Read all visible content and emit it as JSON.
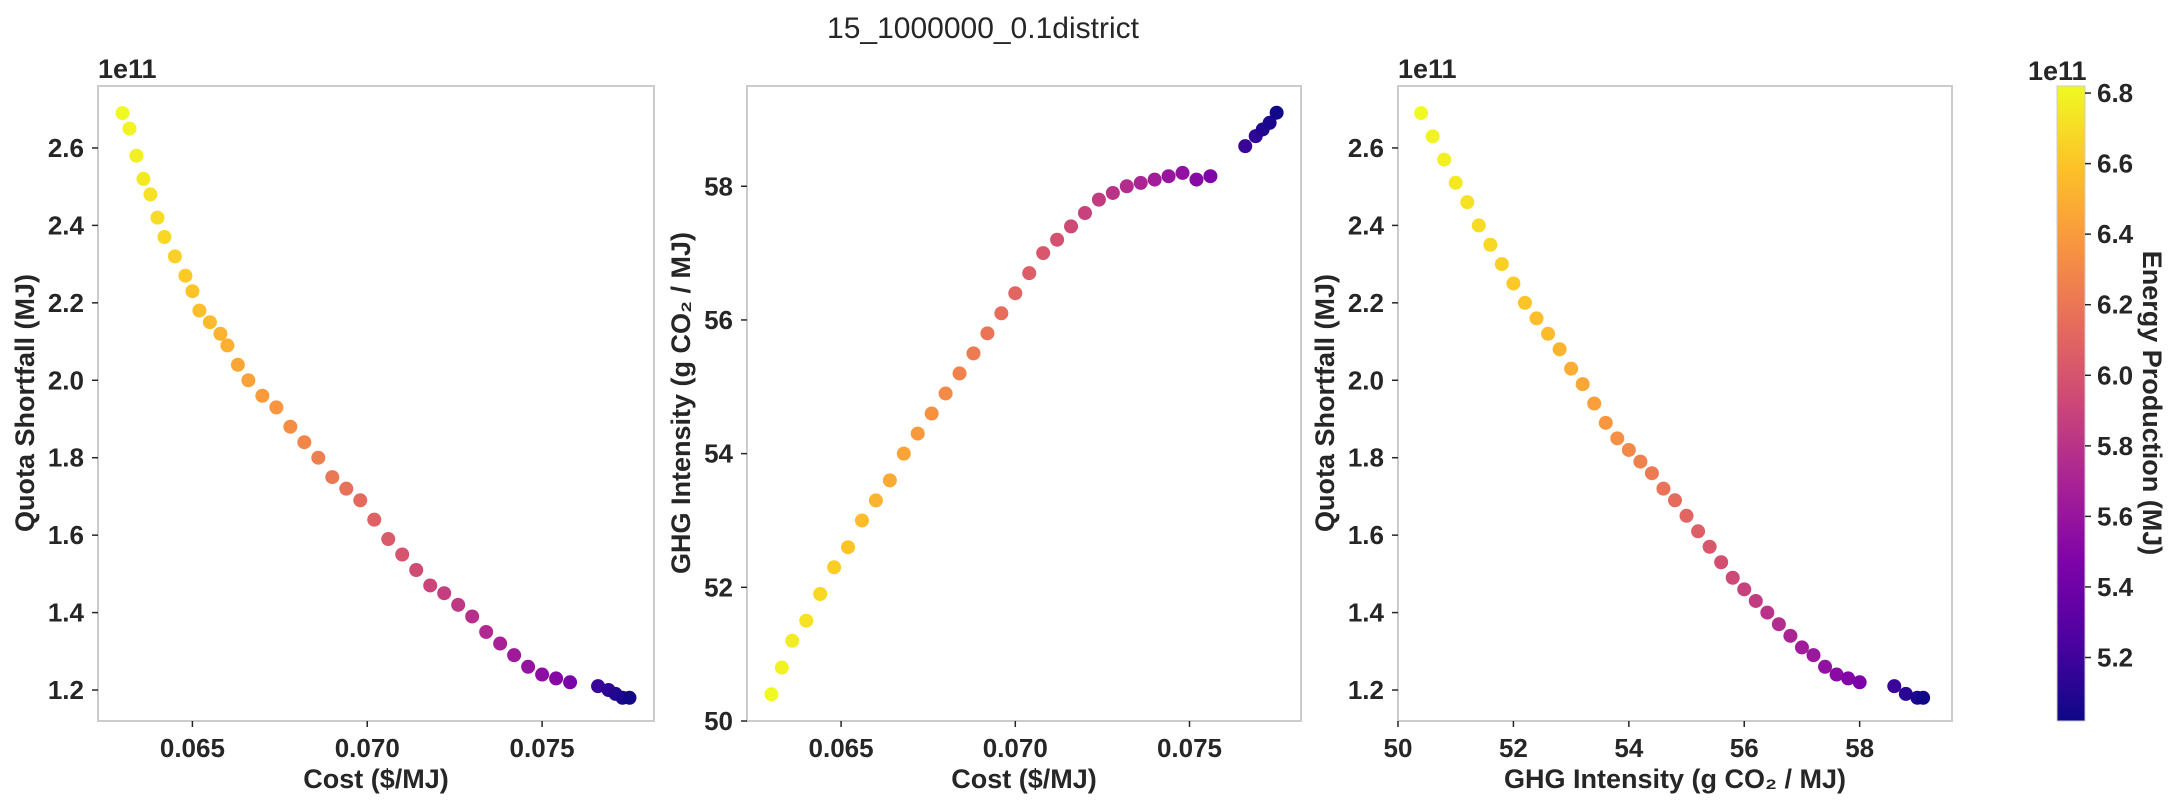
{
  "figure": {
    "title": "15_1000000_0.1district"
  },
  "colorbar": {
    "label": "Energy Production (MJ)",
    "offset": "1e11",
    "range": [
      5.02,
      6.82
    ],
    "ticks": [
      "5.2",
      "5.4",
      "5.6",
      "5.8",
      "6.0",
      "6.2",
      "6.4",
      "6.6",
      "6.8"
    ],
    "tick_values": [
      5.2,
      5.4,
      5.6,
      5.8,
      6.0,
      6.2,
      6.4,
      6.6,
      6.8
    ],
    "colormap": "plasma"
  },
  "chart_data": [
    {
      "type": "scatter",
      "xlabel": "Cost ($/MJ)",
      "ylabel": "Quota Shortfall (MJ)",
      "y_offset": "1e11",
      "xlim": [
        0.0623,
        0.0782
      ],
      "ylim": [
        1.12,
        2.76
      ],
      "xticks": [
        "0.065",
        "0.070",
        "0.075"
      ],
      "xtick_values": [
        0.065,
        0.07,
        0.075
      ],
      "yticks": [
        "1.2",
        "1.4",
        "1.6",
        "1.8",
        "2.0",
        "2.2",
        "2.4",
        "2.6"
      ],
      "ytick_values": [
        1.2,
        1.4,
        1.6,
        1.8,
        2.0,
        2.2,
        2.4,
        2.6
      ],
      "points": [
        [
          0.063,
          2.69,
          6.82
        ],
        [
          0.0632,
          2.65,
          6.8
        ],
        [
          0.0634,
          2.58,
          6.78
        ],
        [
          0.0636,
          2.52,
          6.75
        ],
        [
          0.0638,
          2.48,
          6.72
        ],
        [
          0.064,
          2.42,
          6.7
        ],
        [
          0.0642,
          2.37,
          6.68
        ],
        [
          0.0645,
          2.32,
          6.65
        ],
        [
          0.0648,
          2.27,
          6.62
        ],
        [
          0.065,
          2.23,
          6.6
        ],
        [
          0.0652,
          2.18,
          6.57
        ],
        [
          0.0655,
          2.15,
          6.55
        ],
        [
          0.0658,
          2.12,
          6.52
        ],
        [
          0.066,
          2.09,
          6.5
        ],
        [
          0.0663,
          2.04,
          6.46
        ],
        [
          0.0666,
          2.0,
          6.43
        ],
        [
          0.067,
          1.96,
          6.4
        ],
        [
          0.0674,
          1.93,
          6.37
        ],
        [
          0.0678,
          1.88,
          6.33
        ],
        [
          0.0682,
          1.84,
          6.29
        ],
        [
          0.0686,
          1.8,
          6.25
        ],
        [
          0.069,
          1.75,
          6.21
        ],
        [
          0.0694,
          1.72,
          6.17
        ],
        [
          0.0698,
          1.69,
          6.13
        ],
        [
          0.0702,
          1.64,
          6.08
        ],
        [
          0.0706,
          1.59,
          6.04
        ],
        [
          0.071,
          1.55,
          6.0
        ],
        [
          0.0714,
          1.51,
          5.95
        ],
        [
          0.0718,
          1.47,
          5.91
        ],
        [
          0.0722,
          1.45,
          5.87
        ],
        [
          0.0726,
          1.42,
          5.83
        ],
        [
          0.073,
          1.39,
          5.78
        ],
        [
          0.0734,
          1.35,
          5.74
        ],
        [
          0.0738,
          1.32,
          5.69
        ],
        [
          0.0742,
          1.29,
          5.64
        ],
        [
          0.0746,
          1.26,
          5.59
        ],
        [
          0.075,
          1.24,
          5.55
        ],
        [
          0.0754,
          1.23,
          5.5
        ],
        [
          0.0758,
          1.22,
          5.46
        ],
        [
          0.0766,
          1.21,
          5.18
        ],
        [
          0.0769,
          1.2,
          5.14
        ],
        [
          0.0771,
          1.19,
          5.1
        ],
        [
          0.0773,
          1.18,
          5.07
        ],
        [
          0.0775,
          1.18,
          5.04
        ]
      ]
    },
    {
      "type": "scatter",
      "xlabel": "Cost ($/MJ)",
      "ylabel": "GHG Intensity (g CO₂ / MJ)",
      "xlim": [
        0.0623,
        0.0782
      ],
      "ylim": [
        50.0,
        59.5
      ],
      "xticks": [
        "0.065",
        "0.070",
        "0.075"
      ],
      "xtick_values": [
        0.065,
        0.07,
        0.075
      ],
      "yticks": [
        "50",
        "52",
        "54",
        "56",
        "58"
      ],
      "ytick_values": [
        50,
        52,
        54,
        56,
        58
      ],
      "points": [
        [
          0.063,
          50.4,
          6.82
        ],
        [
          0.0633,
          50.8,
          6.79
        ],
        [
          0.0636,
          51.2,
          6.76
        ],
        [
          0.064,
          51.5,
          6.72
        ],
        [
          0.0644,
          51.9,
          6.68
        ],
        [
          0.0648,
          52.3,
          6.64
        ],
        [
          0.0652,
          52.6,
          6.6
        ],
        [
          0.0656,
          53.0,
          6.56
        ],
        [
          0.066,
          53.3,
          6.52
        ],
        [
          0.0664,
          53.6,
          6.48
        ],
        [
          0.0668,
          54.0,
          6.44
        ],
        [
          0.0672,
          54.3,
          6.39
        ],
        [
          0.0676,
          54.6,
          6.35
        ],
        [
          0.068,
          54.9,
          6.31
        ],
        [
          0.0684,
          55.2,
          6.27
        ],
        [
          0.0688,
          55.5,
          6.23
        ],
        [
          0.0692,
          55.8,
          6.19
        ],
        [
          0.0696,
          56.1,
          6.15
        ],
        [
          0.07,
          56.4,
          6.1
        ],
        [
          0.0704,
          56.7,
          6.06
        ],
        [
          0.0708,
          57.0,
          6.02
        ],
        [
          0.0712,
          57.2,
          5.98
        ],
        [
          0.0716,
          57.4,
          5.94
        ],
        [
          0.072,
          57.6,
          5.89
        ],
        [
          0.0724,
          57.8,
          5.85
        ],
        [
          0.0728,
          57.9,
          5.8
        ],
        [
          0.0732,
          58.0,
          5.76
        ],
        [
          0.0736,
          58.05,
          5.71
        ],
        [
          0.074,
          58.1,
          5.66
        ],
        [
          0.0744,
          58.15,
          5.61
        ],
        [
          0.0748,
          58.2,
          5.57
        ],
        [
          0.0752,
          58.1,
          5.52
        ],
        [
          0.0756,
          58.15,
          5.47
        ],
        [
          0.0766,
          58.6,
          5.18
        ],
        [
          0.0769,
          58.75,
          5.14
        ],
        [
          0.0771,
          58.85,
          5.1
        ],
        [
          0.0773,
          58.95,
          5.07
        ],
        [
          0.0775,
          59.1,
          5.04
        ]
      ]
    },
    {
      "type": "scatter",
      "xlabel": "GHG Intensity (g CO₂ / MJ)",
      "ylabel": "Quota Shortfall (MJ)",
      "y_offset": "1e11",
      "xlim": [
        50.0,
        59.6
      ],
      "ylim": [
        1.12,
        2.76
      ],
      "xticks": [
        "50",
        "52",
        "54",
        "56",
        "58"
      ],
      "xtick_values": [
        50,
        52,
        54,
        56,
        58
      ],
      "yticks": [
        "1.2",
        "1.4",
        "1.6",
        "1.8",
        "2.0",
        "2.2",
        "2.4",
        "2.6"
      ],
      "ytick_values": [
        1.2,
        1.4,
        1.6,
        1.8,
        2.0,
        2.2,
        2.4,
        2.6
      ],
      "points": [
        [
          50.4,
          2.69,
          6.82
        ],
        [
          50.6,
          2.63,
          6.8
        ],
        [
          50.8,
          2.57,
          6.78
        ],
        [
          51.0,
          2.51,
          6.75
        ],
        [
          51.2,
          2.46,
          6.72
        ],
        [
          51.4,
          2.4,
          6.7
        ],
        [
          51.6,
          2.35,
          6.68
        ],
        [
          51.8,
          2.3,
          6.65
        ],
        [
          52.0,
          2.25,
          6.62
        ],
        [
          52.2,
          2.2,
          6.6
        ],
        [
          52.4,
          2.16,
          6.57
        ],
        [
          52.6,
          2.12,
          6.55
        ],
        [
          52.8,
          2.08,
          6.52
        ],
        [
          53.0,
          2.03,
          6.49
        ],
        [
          53.2,
          1.99,
          6.46
        ],
        [
          53.4,
          1.94,
          6.42
        ],
        [
          53.6,
          1.89,
          6.38
        ],
        [
          53.8,
          1.85,
          6.34
        ],
        [
          54.0,
          1.82,
          6.3
        ],
        [
          54.2,
          1.79,
          6.26
        ],
        [
          54.4,
          1.76,
          6.22
        ],
        [
          54.6,
          1.72,
          6.18
        ],
        [
          54.8,
          1.69,
          6.14
        ],
        [
          55.0,
          1.65,
          6.1
        ],
        [
          55.2,
          1.61,
          6.06
        ],
        [
          55.4,
          1.57,
          6.02
        ],
        [
          55.6,
          1.53,
          5.97
        ],
        [
          55.8,
          1.49,
          5.93
        ],
        [
          56.0,
          1.46,
          5.89
        ],
        [
          56.2,
          1.43,
          5.85
        ],
        [
          56.4,
          1.4,
          5.8
        ],
        [
          56.6,
          1.37,
          5.76
        ],
        [
          56.8,
          1.34,
          5.71
        ],
        [
          57.0,
          1.31,
          5.66
        ],
        [
          57.2,
          1.29,
          5.62
        ],
        [
          57.4,
          1.26,
          5.57
        ],
        [
          57.6,
          1.24,
          5.53
        ],
        [
          57.8,
          1.23,
          5.49
        ],
        [
          58.0,
          1.22,
          5.46
        ],
        [
          58.6,
          1.21,
          5.18
        ],
        [
          58.8,
          1.19,
          5.12
        ],
        [
          59.0,
          1.18,
          5.07
        ],
        [
          59.1,
          1.18,
          5.04
        ]
      ]
    }
  ]
}
